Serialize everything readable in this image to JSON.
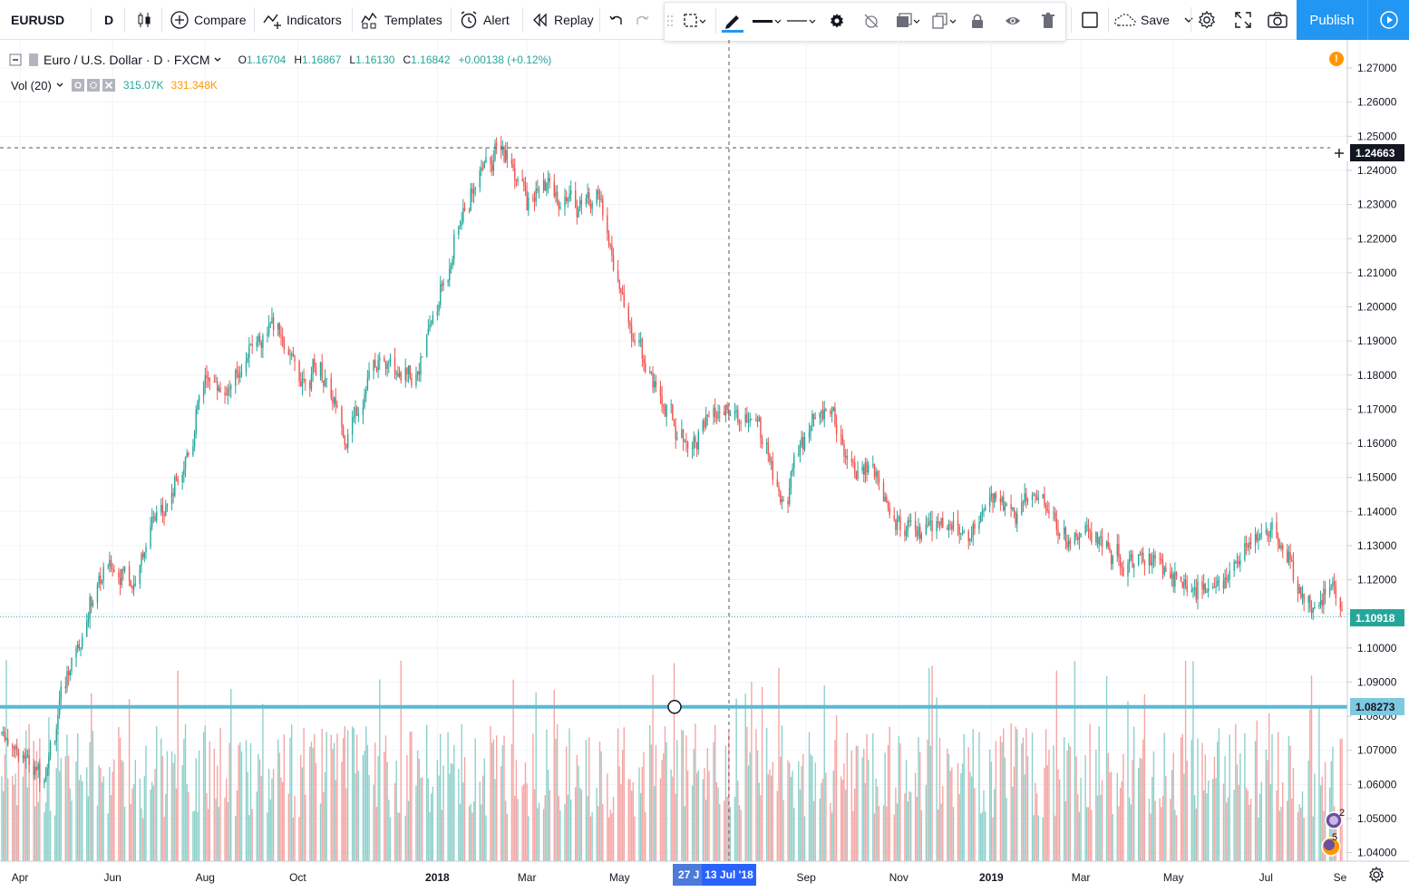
{
  "toolbar": {
    "symbol": "EURUSD",
    "interval": "D",
    "compare_label": "Compare",
    "indicators_label": "Indicators",
    "templates_label": "Templates",
    "alert_label": "Alert",
    "replay_label": "Replay",
    "save_label": "Save",
    "publish_label": "Publish",
    "icons": [
      "candles-icon",
      "plus-circle-icon",
      "indicators-icon",
      "templates-icon",
      "alarm-clock-icon",
      "replay-icon",
      "undo-icon",
      "redo-icon",
      "selection-tool-icon",
      "pencil-icon",
      "line-thickness-icon",
      "line-style-icon",
      "gear-icon",
      "hide-icon",
      "layers-icon",
      "clone-icon",
      "lock-icon",
      "eye-icon",
      "trash-icon",
      "square-icon",
      "cloud-icon",
      "settings-icon",
      "fullscreen-icon",
      "camera-icon",
      "play-icon"
    ]
  },
  "legend": {
    "title": "Euro / U.S. Dollar · D · FXCM",
    "o_label": "O",
    "o_value": "1.16704",
    "h_label": "H",
    "h_value": "1.16867",
    "l_label": "L",
    "l_value": "1.16130",
    "c_label": "C",
    "c_value": "1.16842",
    "change": "+0.00138 (+0.12%)",
    "vol_label": "Vol (20)",
    "vol_value": "315.07K",
    "vol_ma_value": "331.348K",
    "alert_mark": "!"
  },
  "price_axis": {
    "ticks": [
      "1.27000",
      "1.26000",
      "1.25000",
      "1.24000",
      "1.23000",
      "1.22000",
      "1.21000",
      "1.20000",
      "1.19000",
      "1.18000",
      "1.17000",
      "1.16000",
      "1.15000",
      "1.14000",
      "1.13000",
      "1.12000",
      "1.11000",
      "1.10000",
      "1.09000",
      "1.08000",
      "1.07000",
      "1.06000",
      "1.05000",
      "1.04000"
    ],
    "crosshair_label": "1.24663",
    "last_price_label": "1.10918",
    "hline_label": "1.08273",
    "badge_counts": [
      "2",
      "5"
    ]
  },
  "time_axis": {
    "ticks": [
      "Apr",
      "Jun",
      "Aug",
      "Oct",
      "2018",
      "Mar",
      "May",
      "Sep",
      "Nov",
      "2019",
      "Mar",
      "May",
      "Jul",
      "Se"
    ],
    "crosshair_label": "13 Jul '18",
    "prev_label": "27 J"
  },
  "colors": {
    "up": "#26a69a",
    "down": "#ef5350",
    "vol_up": "#8fd1cb",
    "vol_down": "#f5a6a4",
    "hline": "#5bb8d6",
    "accent": "#2196f3"
  },
  "chart_data": {
    "type": "candlestick",
    "x_start": "2017-03-20",
    "x_end": "2019-08-20",
    "ylim": [
      1.0375,
      1.278
    ],
    "crosshair_price": 1.24663,
    "last_price": 1.10918,
    "horizontal_line": 1.08273,
    "anchors": [
      [
        "2017-03-20",
        1.075
      ],
      [
        "2017-04-01",
        1.069
      ],
      [
        "2017-04-15",
        1.062
      ],
      [
        "2017-05-01",
        1.092
      ],
      [
        "2017-05-20",
        1.118
      ],
      [
        "2017-06-01",
        1.125
      ],
      [
        "2017-06-15",
        1.12
      ],
      [
        "2017-07-01",
        1.142
      ],
      [
        "2017-07-15",
        1.15
      ],
      [
        "2017-08-01",
        1.18
      ],
      [
        "2017-08-15",
        1.175
      ],
      [
        "2017-09-01",
        1.19
      ],
      [
        "2017-09-15",
        1.195
      ],
      [
        "2017-10-01",
        1.178
      ],
      [
        "2017-10-15",
        1.183
      ],
      [
        "2017-11-01",
        1.162
      ],
      [
        "2017-11-15",
        1.18
      ],
      [
        "2017-12-01",
        1.185
      ],
      [
        "2017-12-15",
        1.178
      ],
      [
        "2018-01-01",
        1.202
      ],
      [
        "2018-01-15",
        1.225
      ],
      [
        "2018-02-01",
        1.245
      ],
      [
        "2018-02-15",
        1.245
      ],
      [
        "2018-03-01",
        1.23
      ],
      [
        "2018-03-15",
        1.235
      ],
      [
        "2018-04-01",
        1.23
      ],
      [
        "2018-04-15",
        1.235
      ],
      [
        "2018-05-01",
        1.205
      ],
      [
        "2018-05-15",
        1.185
      ],
      [
        "2018-06-01",
        1.168
      ],
      [
        "2018-06-15",
        1.16
      ],
      [
        "2018-07-01",
        1.168
      ],
      [
        "2018-07-15",
        1.168
      ],
      [
        "2018-08-01",
        1.165
      ],
      [
        "2018-08-15",
        1.14
      ],
      [
        "2018-09-01",
        1.165
      ],
      [
        "2018-09-15",
        1.17
      ],
      [
        "2018-10-01",
        1.155
      ],
      [
        "2018-10-15",
        1.15
      ],
      [
        "2018-11-01",
        1.135
      ],
      [
        "2018-11-15",
        1.133
      ],
      [
        "2018-12-01",
        1.137
      ],
      [
        "2018-12-15",
        1.133
      ],
      [
        "2019-01-01",
        1.145
      ],
      [
        "2019-01-15",
        1.14
      ],
      [
        "2019-02-01",
        1.145
      ],
      [
        "2019-02-15",
        1.132
      ],
      [
        "2019-03-01",
        1.136
      ],
      [
        "2019-03-15",
        1.13
      ],
      [
        "2019-04-01",
        1.124
      ],
      [
        "2019-04-15",
        1.127
      ],
      [
        "2019-05-01",
        1.12
      ],
      [
        "2019-05-15",
        1.118
      ],
      [
        "2019-06-01",
        1.12
      ],
      [
        "2019-06-15",
        1.127
      ],
      [
        "2019-07-01",
        1.136
      ],
      [
        "2019-07-15",
        1.125
      ],
      [
        "2019-08-01",
        1.111
      ],
      [
        "2019-08-10",
        1.12
      ],
      [
        "2019-08-20",
        1.1092
      ]
    ]
  }
}
